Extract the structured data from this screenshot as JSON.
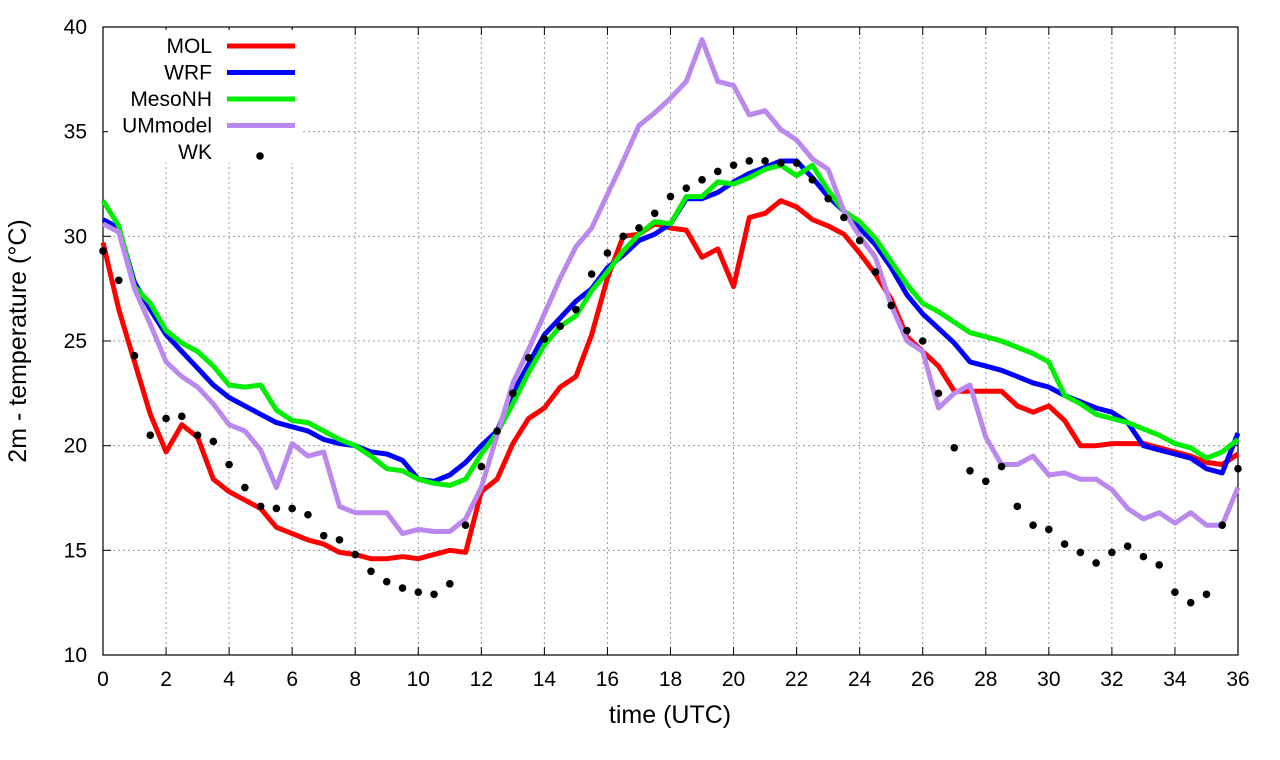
{
  "chart_data": {
    "type": "line",
    "xlabel": "time (UTC)",
    "ylabel": "2m - temperature (°C)",
    "xlim": [
      0,
      36
    ],
    "ylim": [
      10,
      40
    ],
    "xticks": [
      0,
      2,
      4,
      6,
      8,
      10,
      12,
      14,
      16,
      18,
      20,
      22,
      24,
      26,
      28,
      30,
      32,
      34,
      36
    ],
    "yticks": [
      10,
      15,
      20,
      25,
      30,
      35,
      40
    ],
    "grid": true,
    "legend_position": "top-left",
    "series": [
      {
        "name": "MOL",
        "color": "#ff0000",
        "style": "line",
        "x": [
          0,
          0.5,
          1,
          1.5,
          2,
          2.5,
          3,
          3.5,
          4,
          4.5,
          5,
          5.5,
          6,
          6.5,
          7,
          7.5,
          8,
          8.5,
          9,
          9.5,
          10,
          10.5,
          11,
          11.5,
          12,
          12.5,
          13,
          13.5,
          14,
          14.5,
          15,
          15.5,
          16,
          16.5,
          17,
          17.5,
          18,
          18.5,
          19,
          19.5,
          20,
          20.5,
          21,
          21.5,
          22,
          22.5,
          23,
          23.5,
          24,
          24.5,
          25,
          25.5,
          26,
          26.5,
          27,
          27.5,
          28,
          28.5,
          29,
          29.5,
          30,
          30.5,
          31,
          31.5,
          32,
          32.5,
          33,
          33.5,
          34,
          34.5,
          35,
          35.5,
          36
        ],
        "y": [
          29.7,
          26.5,
          24.0,
          21.5,
          19.7,
          21.0,
          20.4,
          18.4,
          17.8,
          17.4,
          17.0,
          16.1,
          15.8,
          15.5,
          15.3,
          14.9,
          14.8,
          14.6,
          14.6,
          14.7,
          14.6,
          14.8,
          15.0,
          14.9,
          17.8,
          18.4,
          20.1,
          21.3,
          21.8,
          22.8,
          23.3,
          25.3,
          28.0,
          30.0,
          30.1,
          30.6,
          30.4,
          30.3,
          29.0,
          29.4,
          27.6,
          30.9,
          31.1,
          31.7,
          31.4,
          30.8,
          30.5,
          30.1,
          29.2,
          28.2,
          27.0,
          25.2,
          24.5,
          23.8,
          22.6,
          22.6,
          22.6,
          22.6,
          21.9,
          21.6,
          21.9,
          21.2,
          20.0,
          20.0,
          20.1,
          20.1,
          20.1,
          19.9,
          19.7,
          19.5,
          19.2,
          19.1,
          19.6
        ]
      },
      {
        "name": "WRF",
        "color": "#0000ff",
        "style": "line",
        "x": [
          0,
          0.5,
          1,
          1.5,
          2,
          2.5,
          3,
          3.5,
          4,
          4.5,
          5,
          5.5,
          6,
          6.5,
          7,
          7.5,
          8,
          8.5,
          9,
          9.5,
          10,
          10.5,
          11,
          11.5,
          12,
          12.5,
          13,
          13.5,
          14,
          14.5,
          15,
          15.5,
          16,
          16.5,
          17,
          17.5,
          18,
          18.5,
          19,
          19.5,
          20,
          20.5,
          21,
          21.5,
          22,
          22.5,
          23,
          23.5,
          24,
          24.5,
          25,
          25.5,
          26,
          26.5,
          27,
          27.5,
          28,
          28.5,
          29,
          29.5,
          30,
          30.5,
          31,
          31.5,
          32,
          32.5,
          33,
          33.5,
          34,
          34.5,
          35,
          35.5,
          36
        ],
        "y": [
          30.8,
          30.4,
          27.8,
          26.5,
          25.3,
          24.5,
          23.7,
          22.9,
          22.3,
          21.9,
          21.5,
          21.1,
          20.9,
          20.7,
          20.3,
          20.1,
          20.0,
          19.7,
          19.6,
          19.3,
          18.4,
          18.3,
          18.6,
          19.2,
          20.0,
          20.7,
          22.5,
          23.9,
          25.3,
          26.1,
          26.9,
          27.5,
          28.5,
          29.1,
          29.8,
          30.1,
          30.6,
          31.8,
          31.8,
          32.1,
          32.6,
          33.0,
          33.3,
          33.6,
          33.6,
          32.8,
          31.9,
          31.2,
          30.4,
          29.6,
          28.5,
          27.2,
          26.3,
          25.6,
          24.9,
          24.0,
          23.8,
          23.6,
          23.3,
          23.0,
          22.8,
          22.4,
          22.1,
          21.8,
          21.6,
          21.1,
          20.0,
          19.8,
          19.6,
          19.4,
          18.9,
          18.7,
          20.6
        ]
      },
      {
        "name": "MesoNH",
        "color": "#00ee00",
        "style": "line",
        "x": [
          0,
          0.5,
          1,
          1.5,
          2,
          2.5,
          3,
          3.5,
          4,
          4.5,
          5,
          5.5,
          6,
          6.5,
          7,
          7.5,
          8,
          8.5,
          9,
          9.5,
          10,
          10.5,
          11,
          11.5,
          12,
          12.5,
          13,
          13.5,
          14,
          14.5,
          15,
          15.5,
          16,
          16.5,
          17,
          17.5,
          18,
          18.5,
          19,
          19.5,
          20,
          20.5,
          21,
          21.5,
          22,
          22.5,
          23,
          23.5,
          24,
          24.5,
          25,
          25.5,
          26,
          26.5,
          27,
          27.5,
          28,
          28.5,
          29,
          29.5,
          30,
          30.5,
          31,
          31.5,
          32,
          32.5,
          33,
          33.5,
          34,
          34.5,
          35,
          35.5,
          36
        ],
        "y": [
          31.7,
          30.5,
          27.6,
          26.8,
          25.5,
          24.9,
          24.5,
          23.8,
          22.9,
          22.8,
          22.9,
          21.7,
          21.2,
          21.1,
          20.7,
          20.3,
          20.0,
          19.5,
          18.9,
          18.8,
          18.4,
          18.2,
          18.1,
          18.4,
          19.6,
          20.6,
          22.0,
          23.5,
          24.8,
          25.7,
          26.2,
          27.4,
          28.3,
          29.3,
          30.1,
          30.7,
          30.6,
          31.9,
          31.9,
          32.6,
          32.5,
          32.8,
          33.2,
          33.4,
          32.9,
          33.4,
          32.2,
          31.2,
          30.7,
          29.9,
          28.8,
          27.7,
          26.8,
          26.4,
          25.9,
          25.4,
          25.2,
          25.0,
          24.7,
          24.4,
          24.0,
          22.4,
          22.0,
          21.5,
          21.3,
          21.1,
          20.8,
          20.5,
          20.1,
          19.9,
          19.4,
          19.7,
          20.3
        ]
      },
      {
        "name": "UMmodel",
        "color": "#bb88ee",
        "style": "line",
        "x": [
          0,
          0.5,
          1,
          1.5,
          2,
          2.5,
          3,
          3.5,
          4,
          4.5,
          5,
          5.5,
          6,
          6.5,
          7,
          7.5,
          8,
          8.5,
          9,
          9.5,
          10,
          10.5,
          11,
          11.5,
          12,
          12.5,
          13,
          13.5,
          14,
          14.5,
          15,
          15.5,
          16,
          16.5,
          17,
          17.5,
          18,
          18.5,
          19,
          19.5,
          20,
          20.5,
          21,
          21.5,
          22,
          22.5,
          23,
          23.5,
          24,
          24.5,
          25,
          25.5,
          26,
          26.5,
          27,
          27.5,
          28,
          28.5,
          29,
          29.5,
          30,
          30.5,
          31,
          31.5,
          32,
          32.5,
          33,
          33.5,
          34,
          34.5,
          35,
          35.5,
          36
        ],
        "y": [
          30.6,
          30.2,
          27.5,
          25.8,
          24.0,
          23.3,
          22.8,
          22.0,
          21.0,
          20.7,
          19.8,
          18.0,
          20.1,
          19.5,
          19.7,
          17.1,
          16.8,
          16.8,
          16.8,
          15.8,
          16.0,
          15.9,
          15.9,
          16.5,
          18.0,
          20.5,
          23.0,
          24.6,
          26.3,
          28.0,
          29.5,
          30.4,
          32.0,
          33.6,
          35.3,
          35.9,
          36.6,
          37.4,
          39.4,
          37.4,
          37.2,
          35.8,
          36.0,
          35.1,
          34.6,
          33.7,
          33.2,
          31.2,
          30.0,
          29.0,
          26.7,
          25.0,
          24.5,
          21.8,
          22.5,
          22.9,
          20.4,
          19.1,
          19.1,
          19.5,
          18.6,
          18.7,
          18.4,
          18.4,
          17.9,
          17.0,
          16.5,
          16.8,
          16.3,
          16.8,
          16.2,
          16.2,
          18.0
        ]
      },
      {
        "name": "WK",
        "color": "#000000",
        "style": "points",
        "x": [
          0,
          0.5,
          1,
          1.5,
          2,
          2.5,
          3,
          3.5,
          4,
          4.5,
          5,
          5.5,
          6,
          6.5,
          7,
          7.5,
          8,
          8.5,
          9,
          9.5,
          10,
          10.5,
          11,
          11.5,
          12,
          12.5,
          13,
          13.5,
          14,
          14.5,
          15,
          15.5,
          16,
          16.5,
          17,
          17.5,
          18,
          18.5,
          19,
          19.5,
          20,
          20.5,
          21,
          21.5,
          22,
          22.5,
          23,
          23.5,
          24,
          24.5,
          25,
          25.5,
          26,
          26.5,
          27,
          27.5,
          28,
          28.5,
          29,
          29.5,
          30,
          30.5,
          31,
          31.5,
          32,
          32.5,
          33,
          33.5,
          34,
          34.5,
          35,
          35.5,
          36
        ],
        "y": [
          29.3,
          27.9,
          24.3,
          20.5,
          21.3,
          21.4,
          20.5,
          20.2,
          19.1,
          18.0,
          17.1,
          17.0,
          17.0,
          16.7,
          15.7,
          15.5,
          14.8,
          14.0,
          13.5,
          13.2,
          13.0,
          12.9,
          13.4,
          16.2,
          19.0,
          20.7,
          22.5,
          24.2,
          25.1,
          25.7,
          26.5,
          28.2,
          29.2,
          30.0,
          30.4,
          31.1,
          31.9,
          32.3,
          32.7,
          33.1,
          33.4,
          33.6,
          33.6,
          33.5,
          33.5,
          32.7,
          31.8,
          30.9,
          29.8,
          28.3,
          26.7,
          25.5,
          25.0,
          22.5,
          19.9,
          18.8,
          18.3,
          19.0,
          17.1,
          16.2,
          16.0,
          15.3,
          14.9,
          14.4,
          14.9,
          15.2,
          14.7,
          14.3,
          13.0,
          12.5,
          12.9,
          16.2,
          18.9
        ]
      }
    ]
  }
}
